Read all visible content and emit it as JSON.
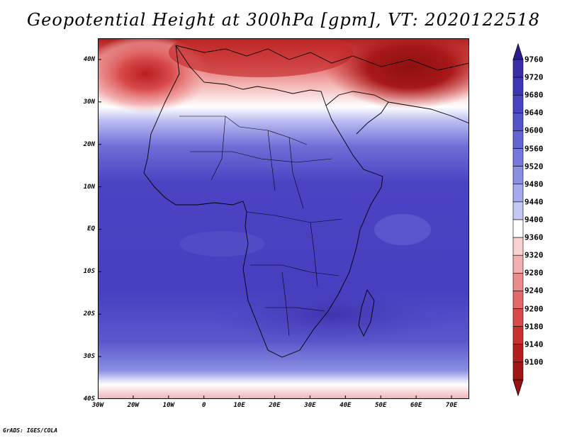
{
  "title": "Geopotential Height at 300hPa [gpm], VT: 2020122518",
  "credit": "GrADS: IGES/COLA",
  "map": {
    "lat_labels": [
      "40N",
      "30N",
      "20N",
      "10N",
      "EQ",
      "10S",
      "20S",
      "30S",
      "40S"
    ],
    "lat_values": [
      40,
      30,
      20,
      10,
      0,
      -10,
      -20,
      -30,
      -40
    ],
    "lon_labels": [
      "30W",
      "20W",
      "10W",
      "0",
      "10E",
      "20E",
      "30E",
      "40E",
      "50E",
      "60E",
      "70E"
    ],
    "lon_values": [
      -30,
      -20,
      -10,
      0,
      10,
      20,
      30,
      40,
      50,
      60,
      70
    ],
    "lon_range": [
      -30,
      75
    ],
    "lat_range": [
      -40,
      45
    ]
  },
  "colorbar": {
    "levels": [
      "9760",
      "9720",
      "9680",
      "9640",
      "9600",
      "9560",
      "9520",
      "9480",
      "9440",
      "9400",
      "9360",
      "9320",
      "9280",
      "9240",
      "9200",
      "9180",
      "9140",
      "9100"
    ],
    "colors": [
      "#3a2fa8",
      "#3f36b4",
      "#4a43c2",
      "#5753c9",
      "#6664d3",
      "#7878dc",
      "#8b8ee3",
      "#a6aaec",
      "#c4c8f4",
      "#ffffff",
      "#f8d2d2",
      "#f3b0b0",
      "#ea8c8c",
      "#e36a6a",
      "#d94a4a",
      "#c93030",
      "#b41e1e",
      "#a01616"
    ],
    "top_arrow_color": "#2a1e8c",
    "bottom_arrow_color": "#9a1010"
  }
}
